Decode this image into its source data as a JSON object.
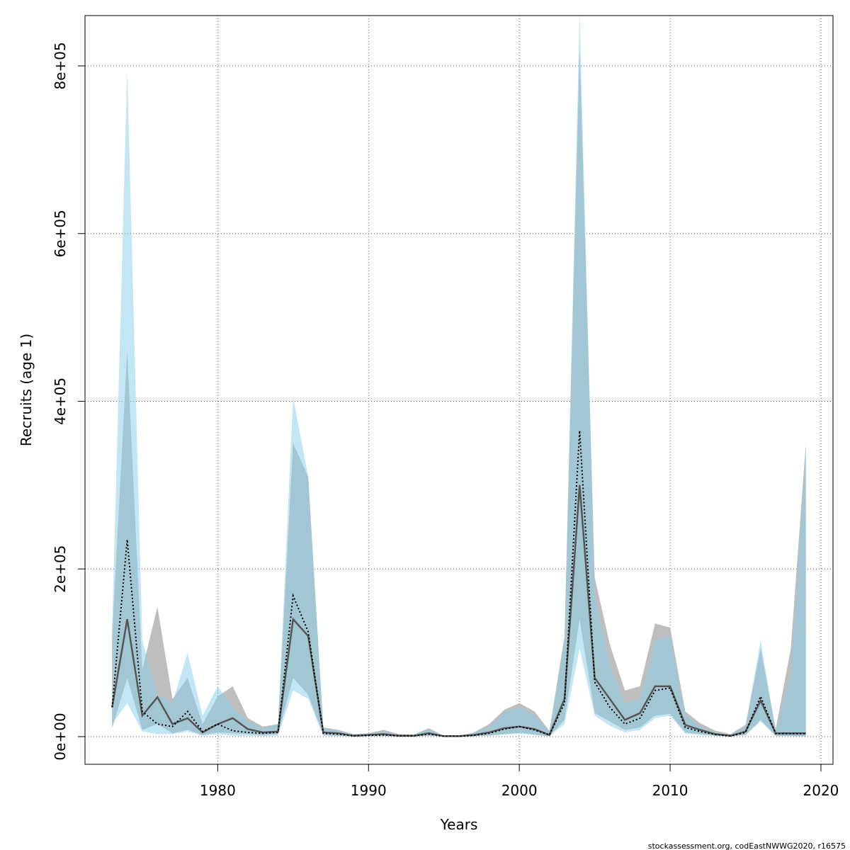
{
  "footer": "stockassessment.org, codEastNWWG2020, r16575",
  "chart_data": {
    "type": "area",
    "title": "",
    "xlabel": "Years",
    "ylabel": "Recruits (age 1)",
    "xlim": [
      1971.2,
      2020.8
    ],
    "ylim": [
      -33000,
      860000
    ],
    "x_ticks": [
      1980,
      1990,
      2000,
      2010,
      2020
    ],
    "x_tick_labels": [
      "1980",
      "1990",
      "2000",
      "2010",
      "2020"
    ],
    "y_ticks": [
      0,
      200000,
      400000,
      600000,
      800000
    ],
    "y_tick_labels": [
      "0e+00",
      "2e+05",
      "4e+05",
      "6e+05",
      "8e+05"
    ],
    "grid": true,
    "legend": "none",
    "colors": {
      "grey_band": "#bebebe",
      "blue_band": "#87ceeb",
      "overlap": "#a5c6d6",
      "grey_line": "#555555",
      "blue_line": "#000000"
    },
    "x": [
      1973,
      1974,
      1975,
      1976,
      1977,
      1978,
      1979,
      1980,
      1981,
      1982,
      1983,
      1984,
      1985,
      1986,
      1987,
      1988,
      1989,
      1990,
      1991,
      1992,
      1993,
      1994,
      1995,
      1996,
      1997,
      1998,
      1999,
      2000,
      2001,
      2002,
      2003,
      2004,
      2005,
      2006,
      2007,
      2008,
      2009,
      2010,
      2011,
      2012,
      2013,
      2014,
      2015,
      2016,
      2017,
      2018,
      2019
    ],
    "series": [
      {
        "style": "grey band, solid line",
        "estimate": [
          35000,
          140000,
          25000,
          47000,
          15000,
          22000,
          5000,
          15000,
          22000,
          9000,
          5000,
          6000,
          140000,
          120000,
          5000,
          4000,
          1000,
          2000,
          3000,
          1000,
          1000,
          4000,
          500,
          500,
          2000,
          5000,
          10000,
          12000,
          9000,
          2000,
          45000,
          300000,
          70000,
          45000,
          20000,
          28000,
          60000,
          60000,
          14000,
          8000,
          3000,
          1000,
          6000,
          43000,
          4000,
          4000,
          4000
        ],
        "lower": [
          10000,
          70000,
          8000,
          15000,
          4000,
          8000,
          2000,
          5000,
          4000,
          3000,
          2000,
          3000,
          70000,
          50000,
          2000,
          1000,
          300,
          500,
          700,
          300,
          300,
          1000,
          100,
          100,
          600,
          1500,
          3000,
          4500,
          2500,
          500,
          20000,
          140000,
          28000,
          18000,
          8000,
          11000,
          25000,
          27000,
          5000,
          3000,
          1000,
          400,
          2000,
          20000,
          800,
          800,
          400
        ],
        "upper": [
          120000,
          460000,
          80000,
          155000,
          45000,
          70000,
          15000,
          48000,
          60000,
          22000,
          12000,
          15000,
          350000,
          310000,
          11000,
          8000,
          3000,
          4000,
          8000,
          3000,
          2500,
          10000,
          1000,
          1000,
          5000,
          15000,
          32000,
          40000,
          30000,
          7000,
          120000,
          820000,
          190000,
          110000,
          55000,
          60000,
          135000,
          130000,
          30000,
          16000,
          7000,
          3000,
          14000,
          105000,
          9000,
          105000,
          350000
        ]
      },
      {
        "style": "blue band, dotted line",
        "estimate": [
          35000,
          235000,
          30000,
          15000,
          12000,
          30000,
          6000,
          15000,
          7000,
          5000,
          4000,
          5000,
          168000,
          125000,
          4000,
          3000,
          1000,
          1500,
          2000,
          1000,
          1000,
          3000,
          500,
          500,
          1500,
          4000,
          9000,
          12000,
          8000,
          2000,
          40000,
          365000,
          65000,
          35000,
          15000,
          22000,
          55000,
          58000,
          11000,
          6000,
          2500,
          800,
          5000,
          48000,
          3500,
          3500,
          3500
        ],
        "lower": [
          15000,
          40000,
          6000,
          3000,
          3000,
          6000,
          1000,
          3000,
          1000,
          1000,
          500,
          1000,
          55000,
          45000,
          1000,
          500,
          200,
          300,
          500,
          200,
          200,
          600,
          100,
          100,
          300,
          1000,
          2500,
          3500,
          2000,
          400,
          15000,
          105000,
          25000,
          13000,
          5000,
          8000,
          22000,
          25000,
          3500,
          2000,
          700,
          200,
          1500,
          18000,
          500,
          500,
          300
        ],
        "upper": [
          130000,
          795000,
          115000,
          50000,
          40000,
          100000,
          25000,
          60000,
          35000,
          18000,
          10000,
          15000,
          405000,
          310000,
          10000,
          7000,
          2500,
          3500,
          6000,
          2500,
          2000,
          9000,
          1000,
          1000,
          4000,
          12000,
          28000,
          35000,
          25000,
          6000,
          115000,
          865000,
          170000,
          85000,
          40000,
          45000,
          115000,
          120000,
          25000,
          12000,
          5000,
          2000,
          11000,
          115000,
          7000,
          75000,
          345000
        ]
      }
    ]
  }
}
